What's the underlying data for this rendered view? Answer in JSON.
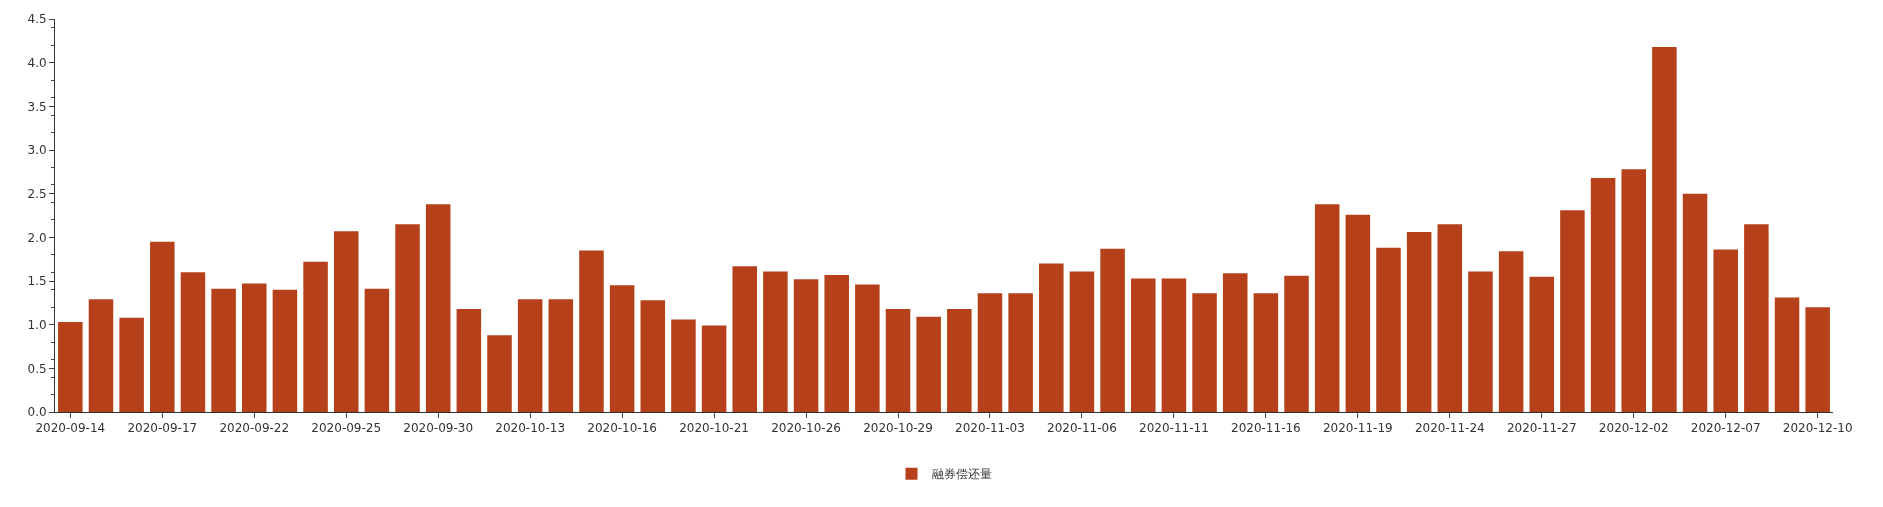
{
  "chart_data": {
    "type": "bar",
    "categories": [
      "2020-09-14",
      null,
      null,
      "2020-09-17",
      null,
      null,
      "2020-09-22",
      null,
      null,
      "2020-09-25",
      null,
      null,
      "2020-09-30",
      null,
      null,
      "2020-10-13",
      null,
      null,
      "2020-10-16",
      null,
      null,
      "2020-10-21",
      null,
      null,
      "2020-10-26",
      null,
      null,
      "2020-10-29",
      null,
      null,
      "2020-11-03",
      null,
      null,
      "2020-11-06",
      null,
      null,
      "2020-11-11",
      null,
      null,
      "2020-11-16",
      null,
      null,
      "2020-11-19",
      null,
      null,
      "2020-11-24",
      null,
      null,
      "2020-11-27",
      null,
      null,
      "2020-12-02",
      null,
      null,
      "2020-12-07",
      null,
      null,
      "2020-12-10"
    ],
    "series": [
      {
        "name": "融券偿还量",
        "color": "#b5401a",
        "values": [
          1.03,
          1.29,
          1.08,
          1.95,
          1.6,
          1.41,
          1.47,
          1.4,
          1.72,
          2.07,
          1.41,
          2.15,
          2.38,
          1.18,
          0.88,
          1.29,
          1.29,
          1.85,
          1.45,
          1.28,
          1.06,
          0.99,
          1.67,
          1.61,
          1.52,
          1.57,
          1.46,
          1.18,
          1.09,
          1.18,
          1.36,
          1.36,
          1.7,
          1.61,
          1.87,
          1.53,
          1.53,
          1.36,
          1.59,
          1.36,
          1.56,
          2.38,
          2.26,
          1.88,
          2.06,
          2.15,
          1.61,
          1.84,
          1.55,
          2.31,
          2.68,
          2.78,
          4.18,
          2.5,
          1.86,
          2.15,
          1.31,
          1.2
        ]
      }
    ],
    "ylim": [
      0,
      4.5
    ],
    "yticks": [
      {
        "value": 0,
        "label": "0.0"
      },
      0.5,
      {
        "value": 1,
        "label": "1.0"
      },
      1.5,
      {
        "value": 2,
        "label": "2.0"
      },
      2.5,
      {
        "value": 3,
        "label": "3.0"
      },
      3.5,
      {
        "value": 4,
        "label": "4.0"
      },
      4.5
    ],
    "legend": "bottom"
  }
}
